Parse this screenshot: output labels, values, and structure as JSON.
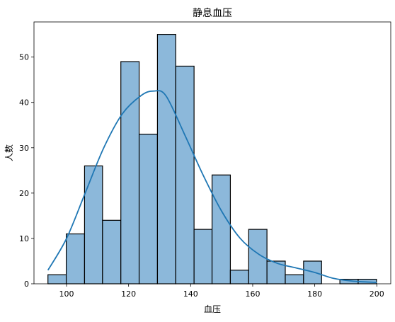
{
  "chart_data": {
    "type": "bar",
    "title": "静息血压",
    "xlabel": "血压",
    "ylabel": "人数",
    "xlim": [
      89.5,
      204.5
    ],
    "ylim": [
      0,
      57.75
    ],
    "xticks": [
      100,
      120,
      140,
      160,
      180,
      200
    ],
    "yticks": [
      0,
      10,
      20,
      30,
      40,
      50
    ],
    "grid": false,
    "bins": [
      {
        "start": 94.0,
        "end": 99.9,
        "count": 2
      },
      {
        "start": 99.9,
        "end": 105.8,
        "count": 11
      },
      {
        "start": 105.8,
        "end": 111.6,
        "count": 26
      },
      {
        "start": 111.6,
        "end": 117.5,
        "count": 14
      },
      {
        "start": 117.5,
        "end": 123.4,
        "count": 49
      },
      {
        "start": 123.4,
        "end": 129.3,
        "count": 33
      },
      {
        "start": 129.3,
        "end": 135.2,
        "count": 55
      },
      {
        "start": 135.2,
        "end": 141.1,
        "count": 48
      },
      {
        "start": 141.1,
        "end": 146.9,
        "count": 12
      },
      {
        "start": 146.9,
        "end": 152.8,
        "count": 24
      },
      {
        "start": 152.8,
        "end": 158.7,
        "count": 3
      },
      {
        "start": 158.7,
        "end": 164.6,
        "count": 12
      },
      {
        "start": 164.6,
        "end": 170.5,
        "count": 5
      },
      {
        "start": 170.5,
        "end": 176.4,
        "count": 2
      },
      {
        "start": 176.4,
        "end": 182.2,
        "count": 5
      },
      {
        "start": 182.2,
        "end": 188.1,
        "count": 0
      },
      {
        "start": 188.1,
        "end": 194.0,
        "count": 1
      },
      {
        "start": 194.0,
        "end": 199.9,
        "count": 1
      }
    ],
    "kde": {
      "x": [
        94,
        100,
        106,
        112,
        118,
        124,
        128,
        132,
        138,
        144,
        150,
        156,
        162,
        168,
        174,
        180,
        186,
        192,
        200
      ],
      "y": [
        3,
        10,
        20,
        30,
        37.5,
        41.5,
        42.5,
        41.5,
        33,
        24,
        16,
        10,
        6.5,
        4.5,
        3.5,
        2.5,
        1.2,
        0.6,
        0.3
      ]
    },
    "colors": {
      "bar_fill": "#8cb8da",
      "bar_edge": "#000000",
      "kde_line": "#1f77b4"
    }
  }
}
